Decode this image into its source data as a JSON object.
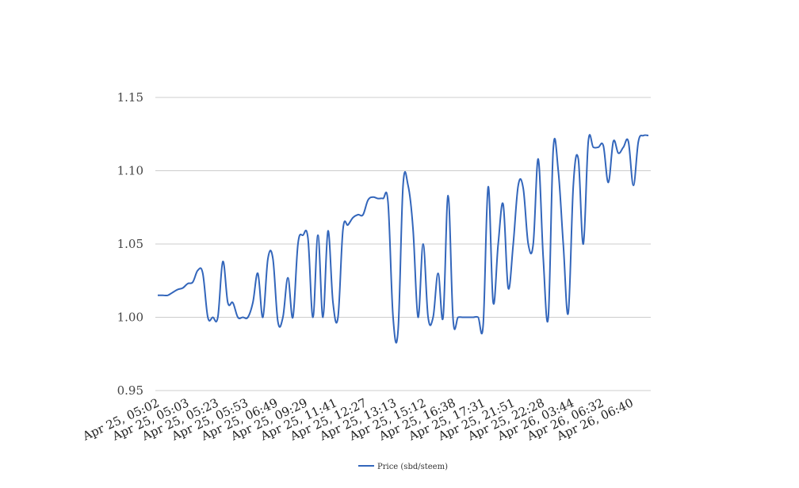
{
  "chart_data": {
    "type": "line",
    "title": "",
    "xlabel": "",
    "ylabel": "",
    "ylim": [
      0.95,
      1.15
    ],
    "yticks": [
      "1.15",
      "1.10",
      "1.05",
      "1.00",
      "0.95"
    ],
    "ytick_values": [
      1.15,
      1.1,
      1.05,
      1.0,
      0.95
    ],
    "grid": true,
    "legend_position": "bottom",
    "xtick_labels": [
      "Apr 25, 05:02",
      "Apr 25, 05:03",
      "Apr 25, 05:23",
      "Apr 25, 05:53",
      "Apr 25, 06:49",
      "Apr 25, 09:29",
      "Apr 25, 11:41",
      "Apr 25, 12:27",
      "Apr 25, 13:13",
      "Apr 25, 15:12",
      "Apr 25, 16:38",
      "Apr 25, 17:31",
      "Apr 25, 21:51",
      "Apr 25, 22:28",
      "Apr 26, 03:44",
      "Apr 26, 06:32",
      "Apr 26, 06:40"
    ],
    "series": [
      {
        "name": "Price (sbd/steem)",
        "color": "#3366bb",
        "values": [
          1.015,
          1.015,
          1.015,
          1.017,
          1.019,
          1.02,
          1.023,
          1.024,
          1.032,
          1.03,
          1.0,
          1.0,
          1.0,
          1.038,
          1.01,
          1.01,
          1.0,
          1.0,
          1.0,
          1.01,
          1.03,
          1.0,
          1.04,
          1.04,
          0.997,
          1.0,
          1.027,
          1.0,
          1.05,
          1.056,
          1.054,
          1.0,
          1.056,
          1.0,
          1.059,
          1.01,
          1.0,
          1.06,
          1.063,
          1.068,
          1.07,
          1.07,
          1.08,
          1.082,
          1.081,
          1.081,
          1.078,
          1.0,
          0.991,
          1.09,
          1.09,
          1.06,
          1.0,
          1.05,
          1.0,
          1.0,
          1.03,
          1.0,
          1.083,
          0.998,
          1.0,
          1.0,
          1.0,
          1.0,
          1.0,
          0.995,
          1.089,
          1.01,
          1.05,
          1.077,
          1.02,
          1.05,
          1.09,
          1.088,
          1.05,
          1.05,
          1.108,
          1.04,
          1.0,
          1.115,
          1.1,
          1.05,
          1.003,
          1.09,
          1.108,
          1.05,
          1.12,
          1.116,
          1.116,
          1.117,
          1.092,
          1.12,
          1.112,
          1.116,
          1.12,
          1.09,
          1.12,
          1.124,
          1.124
        ]
      }
    ]
  }
}
